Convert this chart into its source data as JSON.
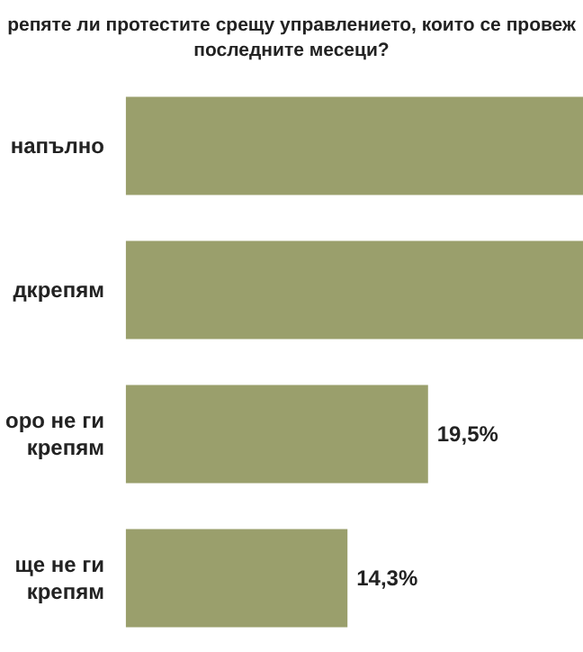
{
  "chart_data": {
    "type": "bar",
    "orientation": "horizontal",
    "title": "репяте ли протестите срещу управлението, които се провеж\nпоследните месеци?",
    "categories": [
      "напълно",
      "дкрепям",
      "оро не ги\nкрепям",
      "ще не ги\nкрепям"
    ],
    "values": [
      29.5,
      29.5,
      19.5,
      14.3
    ],
    "value_labels": [
      null,
      null,
      "19,5%",
      "14,3%"
    ],
    "color": "#9a9f6c",
    "xlim": [
      0,
      29.5
    ]
  }
}
